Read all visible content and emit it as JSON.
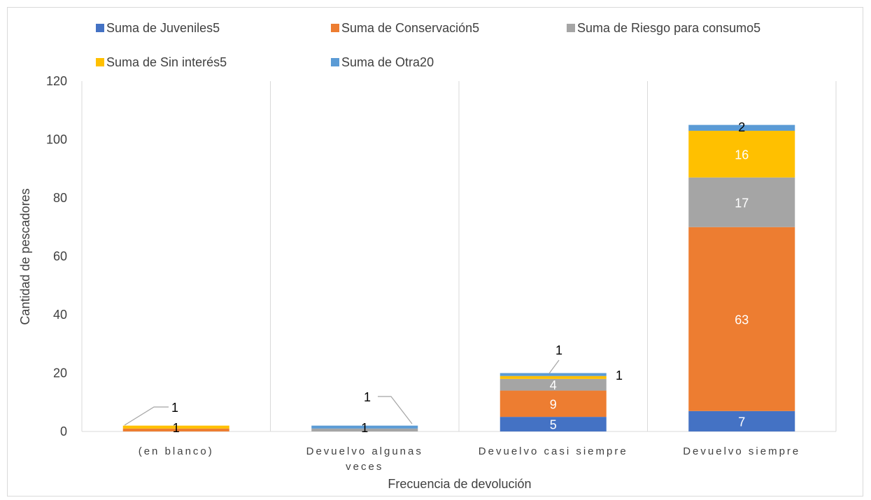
{
  "chart_data": {
    "type": "bar",
    "stacked": true,
    "categories": [
      [
        "(en blanco)"
      ],
      [
        "Devuelvo algunas",
        "veces"
      ],
      [
        "Devuelvo casi siempre"
      ],
      [
        "Devuelvo siempre"
      ]
    ],
    "series": [
      {
        "name": "Suma de Juveniles5",
        "color": "#4472C4",
        "values": [
          0,
          0,
          5,
          7
        ]
      },
      {
        "name": "Suma de Conservación5",
        "color": "#ED7D31",
        "values": [
          1,
          0,
          9,
          63
        ]
      },
      {
        "name": "Suma de Riesgo para consumo5",
        "color": "#A5A5A5",
        "values": [
          0,
          1,
          4,
          17
        ]
      },
      {
        "name": "Suma de Sin interés5",
        "color": "#FFC000",
        "values": [
          1,
          0,
          1,
          16
        ]
      },
      {
        "name": "Suma de Otra20",
        "color": "#5B9BD5",
        "values": [
          0,
          1,
          1,
          2
        ]
      }
    ],
    "xlabel": "Frecuencia de devolución",
    "ylabel": "Cantidad de pescadores",
    "ylim": [
      0,
      120
    ],
    "yticks": [
      0,
      20,
      40,
      60,
      80,
      100,
      120
    ],
    "grid": "vertical",
    "legend_position": "top",
    "data_labels": [
      {
        "text": "1",
        "category": 0,
        "series": 1,
        "callout": false
      },
      {
        "text": "1",
        "category": 0,
        "series": 3,
        "callout": true
      },
      {
        "text": "1",
        "category": 1,
        "series": 2,
        "callout": false
      },
      {
        "text": "1",
        "category": 1,
        "series": 4,
        "callout": true
      },
      {
        "text": "5",
        "category": 2,
        "series": 0,
        "callout": false
      },
      {
        "text": "9",
        "category": 2,
        "series": 1,
        "callout": false
      },
      {
        "text": "4",
        "category": 2,
        "series": 2,
        "callout": false
      },
      {
        "text": "1",
        "category": 2,
        "series": 3,
        "callout": true
      },
      {
        "text": "1",
        "category": 2,
        "series": 4,
        "callout": true
      },
      {
        "text": "7",
        "category": 3,
        "series": 0,
        "callout": false
      },
      {
        "text": "63",
        "category": 3,
        "series": 1,
        "callout": false
      },
      {
        "text": "17",
        "category": 3,
        "series": 2,
        "callout": false
      },
      {
        "text": "16",
        "category": 3,
        "series": 3,
        "callout": false
      },
      {
        "text": "2",
        "category": 3,
        "series": 4,
        "callout": false
      }
    ]
  }
}
